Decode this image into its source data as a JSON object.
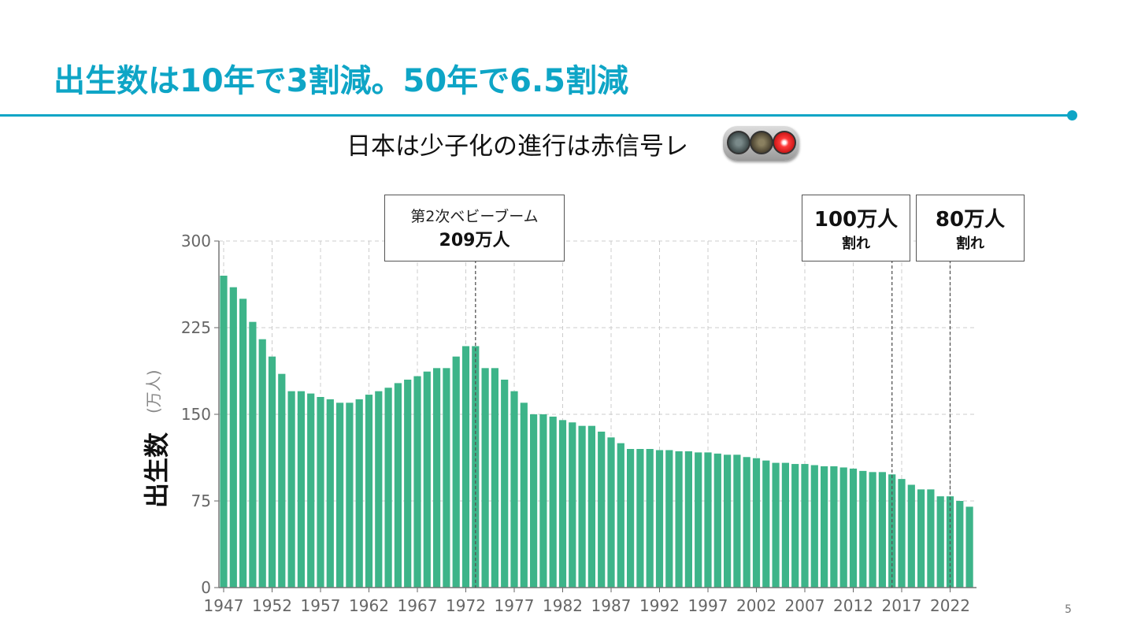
{
  "slide": {
    "title": "出生数は10年で3割減。50年で6.5割減",
    "subtitle": "日本は少子化の進行は赤信号レ",
    "page_number": "5",
    "accent_color": "#0ea5c6",
    "traffic_light": {
      "icon": "traffic-light-icon",
      "lit": "red"
    }
  },
  "chart_data": {
    "type": "bar",
    "ylabel": "出生数",
    "ylabel_unit": "(万人)",
    "ylim": [
      0,
      300
    ],
    "yticks": [
      0,
      75,
      150,
      225,
      300
    ],
    "xticks": [
      1947,
      1952,
      1957,
      1962,
      1967,
      1972,
      1977,
      1982,
      1987,
      1992,
      1997,
      2002,
      2007,
      2012,
      2017,
      2022
    ],
    "grid": true,
    "bar_color": "#3db489",
    "categories": [
      1947,
      1948,
      1949,
      1950,
      1951,
      1952,
      1953,
      1954,
      1955,
      1956,
      1957,
      1958,
      1959,
      1960,
      1961,
      1962,
      1963,
      1964,
      1965,
      1966,
      1967,
      1968,
      1969,
      1970,
      1971,
      1972,
      1973,
      1974,
      1975,
      1976,
      1977,
      1978,
      1979,
      1980,
      1981,
      1982,
      1983,
      1984,
      1985,
      1986,
      1987,
      1988,
      1989,
      1990,
      1991,
      1992,
      1993,
      1994,
      1995,
      1996,
      1997,
      1998,
      1999,
      2000,
      2001,
      2002,
      2003,
      2004,
      2005,
      2006,
      2007,
      2008,
      2009,
      2010,
      2011,
      2012,
      2013,
      2014,
      2015,
      2016,
      2017,
      2018,
      2019,
      2020,
      2021,
      2022,
      2023,
      2024
    ],
    "values": [
      270,
      260,
      250,
      230,
      215,
      200,
      185,
      170,
      170,
      168,
      165,
      163,
      160,
      160,
      163,
      167,
      170,
      173,
      177,
      180,
      183,
      187,
      190,
      190,
      200,
      209,
      209,
      190,
      190,
      180,
      170,
      160,
      150,
      150,
      148,
      145,
      143,
      140,
      140,
      135,
      130,
      125,
      120,
      120,
      120,
      119,
      119,
      118,
      118,
      117,
      117,
      116,
      115,
      115,
      113,
      112,
      110,
      108,
      108,
      107,
      107,
      106,
      105,
      105,
      104,
      103,
      101,
      100,
      100,
      98,
      94,
      89,
      85,
      85,
      79,
      79,
      75,
      70
    ],
    "annotations": [
      {
        "year": 1973,
        "line1": "第2次ベビーブーム",
        "line2": "209万人"
      },
      {
        "year": 2016,
        "line1": "100万人",
        "line2": "割れ"
      },
      {
        "year": 2022,
        "line1": "80万人",
        "line2": "割れ"
      }
    ]
  }
}
